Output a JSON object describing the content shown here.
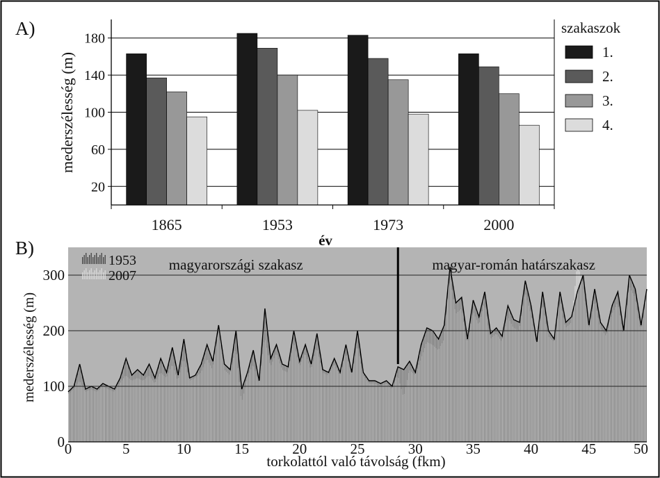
{
  "chart_data": [
    {
      "panel_label": "A)",
      "type": "bar",
      "title": "",
      "xlabel": "év",
      "ylabel": "mederszélesség (m)",
      "ylim": [
        0,
        200
      ],
      "yticks": [
        20,
        60,
        100,
        140,
        180
      ],
      "grid": true,
      "legend_title": "szakaszok",
      "legend_position": "right",
      "categories": [
        "1865",
        "1953",
        "1973",
        "2000"
      ],
      "series": [
        {
          "name": "1.",
          "color": "#1a1a1a",
          "values": [
            163,
            185,
            183,
            163
          ]
        },
        {
          "name": "2.",
          "color": "#5a5a5a",
          "values": [
            137,
            169,
            158,
            149
          ]
        },
        {
          "name": "3.",
          "color": "#989898",
          "values": [
            122,
            140,
            135,
            120
          ]
        },
        {
          "name": "4.",
          "color": "#dcdcdc",
          "values": [
            95,
            102,
            98,
            86
          ]
        }
      ]
    },
    {
      "panel_label": "B)",
      "type": "bar",
      "title": "",
      "xlabel": "torkolattól való távolság (fkm)",
      "ylabel": "mederszélesség (m)",
      "xlim": [
        0,
        50
      ],
      "ylim": [
        0,
        350
      ],
      "xticks": [
        0,
        5,
        10,
        15,
        20,
        25,
        30,
        35,
        40,
        45,
        50
      ],
      "yticks": [
        0,
        100,
        200,
        300
      ],
      "grid": true,
      "legend_position": "top-left",
      "divider_x": 28.5,
      "annotations": [
        {
          "text": "magyarországi szakasz",
          "x": 14.5
        },
        {
          "text": "magyar-román határszakasz",
          "x": 38.5
        }
      ],
      "series": [
        {
          "name": "1953",
          "color": "#4a4a4a",
          "x": [
            0,
            0.5,
            1,
            1.5,
            2,
            2.5,
            3,
            3.5,
            4,
            4.5,
            5,
            5.5,
            6,
            6.5,
            7,
            7.5,
            8,
            8.5,
            9,
            9.5,
            10,
            10.5,
            11,
            11.5,
            12,
            12.5,
            13,
            13.5,
            14,
            14.5,
            15,
            15.5,
            16,
            16.5,
            17,
            17.5,
            18,
            18.5,
            19,
            19.5,
            20,
            20.5,
            21,
            21.5,
            22,
            22.5,
            23,
            23.5,
            24,
            24.5,
            25,
            25.5,
            26,
            26.5,
            27,
            27.5,
            28,
            28.5,
            29,
            29.5,
            30,
            30.5,
            31,
            31.5,
            32,
            32.5,
            33,
            33.5,
            34,
            34.5,
            35,
            35.5,
            36,
            36.5,
            37,
            37.5,
            38,
            38.5,
            39,
            39.5,
            40,
            40.5,
            41,
            41.5,
            42,
            42.5,
            43,
            43.5,
            44,
            44.5,
            45,
            45.5,
            46,
            46.5,
            47,
            47.5,
            48,
            48.5,
            49,
            49.5,
            50
          ],
          "values": [
            90,
            100,
            140,
            95,
            100,
            95,
            105,
            100,
            95,
            115,
            150,
            120,
            130,
            120,
            140,
            115,
            150,
            125,
            170,
            120,
            185,
            115,
            120,
            140,
            175,
            145,
            210,
            140,
            130,
            200,
            95,
            125,
            165,
            110,
            240,
            150,
            175,
            140,
            135,
            200,
            145,
            175,
            140,
            195,
            130,
            125,
            150,
            125,
            175,
            125,
            200,
            125,
            110,
            110,
            105,
            110,
            100,
            135,
            130,
            145,
            125,
            175,
            205,
            200,
            185,
            210,
            315,
            250,
            260,
            185,
            255,
            225,
            270,
            195,
            205,
            190,
            245,
            220,
            215,
            290,
            245,
            180,
            270,
            200,
            185,
            270,
            215,
            225,
            270,
            300,
            210,
            275,
            215,
            200,
            245,
            270,
            200,
            300,
            275,
            210,
            275
          ]
        },
        {
          "name": "2007",
          "color": "#d8d8d8",
          "x": [
            0,
            0.5,
            1,
            1.5,
            2,
            2.5,
            3,
            3.5,
            4,
            4.5,
            5,
            5.5,
            6,
            6.5,
            7,
            7.5,
            8,
            8.5,
            9,
            9.5,
            10,
            10.5,
            11,
            11.5,
            12,
            12.5,
            13,
            13.5,
            14,
            14.5,
            15,
            15.5,
            16,
            16.5,
            17,
            17.5,
            18,
            18.5,
            19,
            19.5,
            20,
            20.5,
            21,
            21.5,
            22,
            22.5,
            23,
            23.5,
            24,
            24.5,
            25,
            25.5,
            26,
            26.5,
            27,
            27.5,
            28,
            28.5,
            29,
            29.5,
            30,
            30.5,
            31,
            31.5,
            32,
            32.5,
            33,
            33.5,
            34,
            34.5,
            35,
            35.5,
            36,
            36.5,
            37,
            37.5,
            38,
            38.5,
            39,
            39.5,
            40,
            40.5,
            41,
            41.5,
            42,
            42.5,
            43,
            43.5,
            44,
            44.5,
            45,
            45.5,
            46,
            46.5,
            47,
            47.5,
            48,
            48.5,
            49,
            49.5,
            50
          ],
          "values": [
            85,
            95,
            110,
            90,
            95,
            90,
            100,
            95,
            90,
            105,
            120,
            110,
            115,
            110,
            120,
            105,
            125,
            115,
            140,
            110,
            150,
            110,
            115,
            125,
            150,
            130,
            205,
            130,
            120,
            170,
            70,
            115,
            140,
            105,
            190,
            135,
            160,
            130,
            125,
            180,
            135,
            160,
            130,
            170,
            125,
            120,
            140,
            120,
            160,
            120,
            175,
            120,
            105,
            105,
            100,
            105,
            95,
            120,
            80,
            130,
            120,
            150,
            180,
            175,
            165,
            185,
            300,
            230,
            240,
            175,
            235,
            210,
            250,
            185,
            195,
            180,
            225,
            205,
            200,
            270,
            230,
            175,
            250,
            190,
            180,
            255,
            205,
            215,
            320,
            285,
            200,
            255,
            205,
            190,
            230,
            250,
            190,
            280,
            260,
            200,
            260
          ]
        }
      ]
    }
  ]
}
